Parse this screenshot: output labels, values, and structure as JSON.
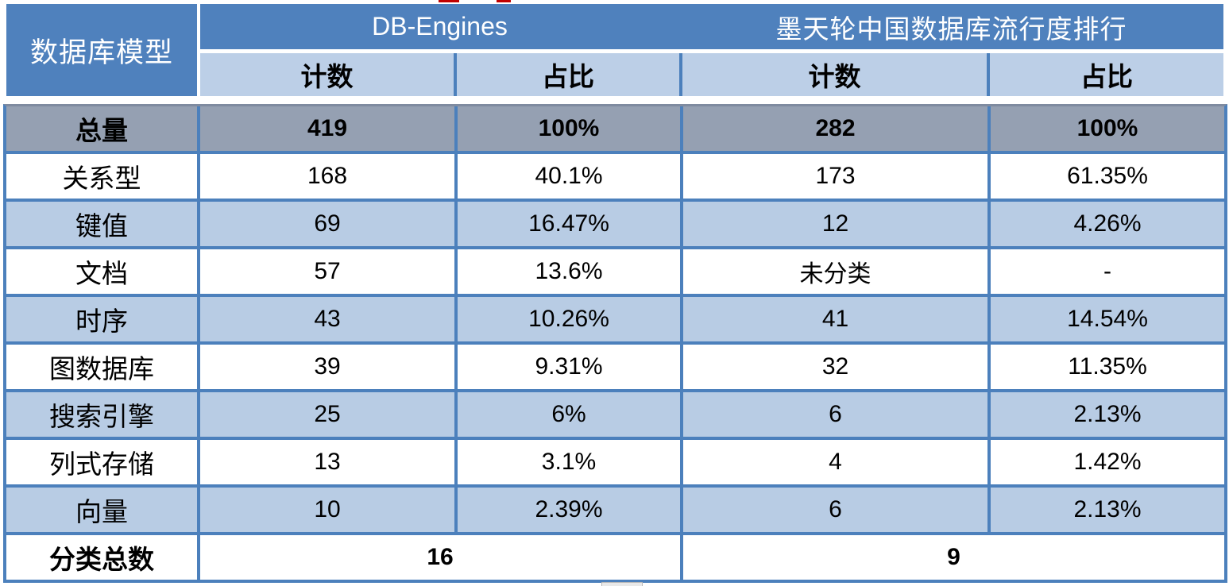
{
  "colors": {
    "header_blue": "#4F81BD",
    "border_blue": "#4C80BC",
    "subheader_blue": "#BCCFE7",
    "row_blue": "#B8CCE4",
    "total_gray": "#95A0B2",
    "red_artifact": "#C00000"
  },
  "table": {
    "corner_header": "数据库模型",
    "group_headers": [
      "DB-Engines",
      "墨天轮中国数据库流行度排行"
    ],
    "sub_headers": [
      "计数",
      "占比",
      "计数",
      "占比"
    ],
    "rows": [
      {
        "label": "总量",
        "values": [
          "419",
          "100%",
          "282",
          "100%"
        ]
      },
      {
        "label": "关系型",
        "values": [
          "168",
          "40.1%",
          "173",
          "61.35%"
        ]
      },
      {
        "label": "键值",
        "values": [
          "69",
          "16.47%",
          "12",
          "4.26%"
        ]
      },
      {
        "label": "文档",
        "values": [
          "57",
          "13.6%",
          "未分类",
          "-"
        ]
      },
      {
        "label": "时序",
        "values": [
          "43",
          "10.26%",
          "41",
          "14.54%"
        ]
      },
      {
        "label": "图数据库",
        "values": [
          "39",
          "9.31%",
          "32",
          "11.35%"
        ]
      },
      {
        "label": "搜索引擎",
        "values": [
          "25",
          "6%",
          "6",
          "2.13%"
        ]
      },
      {
        "label": "列式存储",
        "values": [
          "13",
          "3.1%",
          "4",
          "1.42%"
        ]
      },
      {
        "label": "向量",
        "values": [
          "10",
          "2.39%",
          "6",
          "2.13%"
        ]
      }
    ],
    "footer": {
      "label": "分类总数",
      "values": [
        "16",
        "9"
      ]
    }
  },
  "chart_data": {
    "type": "table",
    "columns": [
      "数据库模型",
      "DB-Engines 计数",
      "DB-Engines 占比",
      "墨天轮中国数据库流行度排行 计数",
      "墨天轮中国数据库流行度排行 占比"
    ],
    "rows": [
      [
        "总量",
        419,
        "100%",
        282,
        "100%"
      ],
      [
        "关系型",
        168,
        "40.1%",
        173,
        "61.35%"
      ],
      [
        "键值",
        69,
        "16.47%",
        12,
        "4.26%"
      ],
      [
        "文档",
        57,
        "13.6%",
        "未分类",
        "-"
      ],
      [
        "时序",
        43,
        "10.26%",
        41,
        "14.54%"
      ],
      [
        "图数据库",
        39,
        "9.31%",
        32,
        "11.35%"
      ],
      [
        "搜索引擎",
        25,
        "6%",
        6,
        "2.13%"
      ],
      [
        "列式存储",
        13,
        "3.1%",
        4,
        "1.42%"
      ],
      [
        "向量",
        10,
        "2.39%",
        6,
        "2.13%"
      ],
      [
        "分类总数",
        16,
        "",
        9,
        ""
      ]
    ],
    "legend_position": "none",
    "grid": true
  }
}
